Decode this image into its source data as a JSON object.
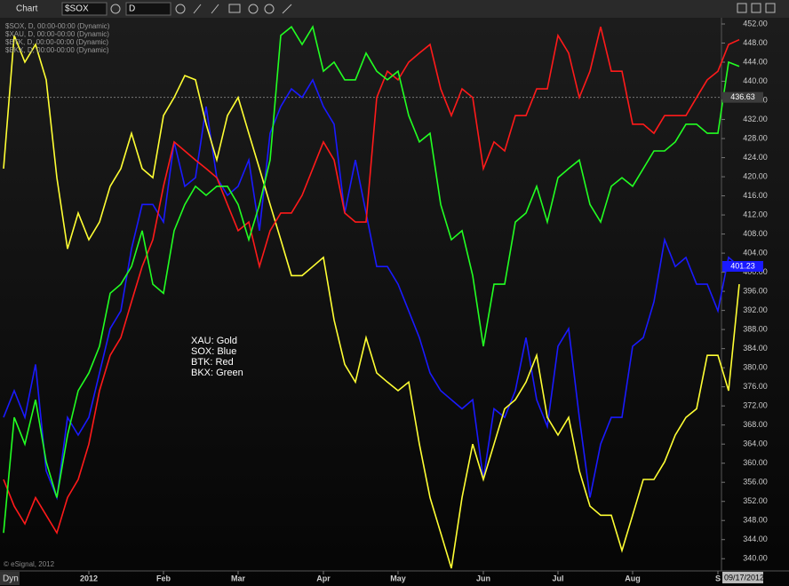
{
  "toolbar": {
    "title": "Chart",
    "symbol": "$SOX",
    "interval": "D"
  },
  "footer": {
    "copyright": "© eSignal, 2012",
    "mode": "Dyn",
    "date": "09/17/2012"
  },
  "chart_data": {
    "type": "line",
    "categories": [
      null,
      null,
      null,
      null,
      null,
      null,
      null,
      null,
      "2012",
      null,
      null,
      null,
      null,
      null,
      null,
      "Feb",
      null,
      null,
      null,
      null,
      null,
      null,
      "Mar",
      null,
      null,
      null,
      null,
      null,
      null,
      null,
      "Apr",
      null,
      null,
      null,
      null,
      null,
      null,
      "May",
      null,
      null,
      null,
      null,
      null,
      null,
      null,
      "Jun",
      null,
      null,
      null,
      null,
      null,
      null,
      "Jul",
      null,
      null,
      null,
      null,
      null,
      null,
      "Aug",
      null,
      null,
      null,
      null,
      null,
      null,
      null,
      "S",
      null,
      null
    ],
    "series": [
      {
        "name": "$SOX, D, 00:00-00:00 (Dynamic)",
        "color": "#1a1aff",
        "values": [
          369.6,
          375.2,
          369.6,
          380.7,
          358.4,
          352.8,
          369.6,
          365.9,
          369.6,
          378.9,
          388.2,
          391.9,
          404.9,
          414.2,
          414.2,
          410.5,
          427.3,
          418,
          419.8,
          434.7,
          419.8,
          416.1,
          418,
          423.5,
          408.7,
          429.1,
          434.7,
          438.4,
          436.6,
          440.3,
          434.7,
          431,
          412.4,
          423.5,
          412.4,
          401.2,
          401.2,
          397.5,
          391.9,
          386.3,
          378.9,
          375.2,
          373.3,
          371.4,
          373.3,
          356.6,
          371.4,
          369.6,
          375.2,
          386.3,
          373.3,
          367.7,
          384.5,
          388.2,
          369.6,
          352.8,
          364,
          369.6,
          369.6,
          384.5,
          386.3,
          393.8,
          406.8,
          401.2,
          403.1,
          397.5,
          397.5,
          391.9,
          403.1,
          401.2
        ]
      },
      {
        "name": "$XAU, D, 00:00-00:00 (Dynamic)",
        "color": "#ffff33",
        "values": [
          421.7,
          449.6,
          444,
          447.7,
          440.3,
          419.8,
          404.9,
          412.4,
          406.8,
          410.5,
          418,
          421.7,
          429.1,
          421.7,
          419.8,
          432.8,
          436.6,
          441.2,
          440.3,
          431,
          423.5,
          432.8,
          436.6,
          429.1,
          421.7,
          414.2,
          406.8,
          399.3,
          399.3,
          401.2,
          403.1,
          390,
          380.7,
          377,
          386.3,
          378.9,
          377,
          375.2,
          377,
          364,
          352.8,
          345.4,
          338,
          352.8,
          364,
          356.6,
          364,
          371.4,
          373.3,
          377,
          382.6,
          369.6,
          365.9,
          369.6,
          358.4,
          351,
          349.1,
          349.1,
          341.7,
          349.1,
          356.6,
          356.6,
          360.3,
          365.9,
          369.6,
          371.4,
          382.6,
          382.6,
          375.2,
          397.5
        ]
      },
      {
        "name": "$BTK, D, 00:00-00:00 (Dynamic)",
        "color": "#ff1a1a",
        "values": [
          356.6,
          351,
          347.3,
          352.8,
          349.1,
          345.4,
          352.8,
          356.6,
          364,
          375.2,
          382.6,
          386.3,
          393.8,
          401.2,
          406.8,
          418,
          427.3,
          425.4,
          423.5,
          421.7,
          419.8,
          414.2,
          408.7,
          410.5,
          401.2,
          408.7,
          412.4,
          412.4,
          416.1,
          421.7,
          427.3,
          423.5,
          412.4,
          410.5,
          410.5,
          436.6,
          442.1,
          440.3,
          444,
          445.9,
          447.7,
          438.4,
          432.8,
          438.4,
          436.6,
          421.7,
          427.3,
          425.4,
          432.8,
          432.8,
          438.4,
          438.4,
          449.6,
          445.9,
          436.6,
          442.1,
          451.4,
          442.1,
          442.1,
          431,
          431,
          429.1,
          432.8,
          432.8,
          432.8,
          436.6,
          440.3,
          442.1,
          447.7,
          448.7
        ]
      },
      {
        "name": "$BKX, D, 00:00-00:00 (Dynamic)",
        "color": "#22ff22",
        "values": [
          345.4,
          369.6,
          364,
          373.3,
          360.3,
          352.8,
          365.9,
          375.2,
          378.9,
          384.5,
          395.6,
          397.5,
          401.2,
          408.7,
          397.5,
          395.6,
          408.7,
          414.2,
          418,
          416.1,
          418,
          418,
          414.2,
          406.8,
          414.2,
          423.5,
          449.6,
          451.4,
          447.7,
          451.4,
          442.1,
          444,
          440.3,
          440.3,
          445.9,
          442.1,
          440.3,
          442.1,
          432.8,
          427.3,
          429.1,
          414.2,
          406.8,
          408.7,
          399.3,
          384.5,
          397.5,
          397.5,
          410.5,
          412.4,
          418,
          410.5,
          419.8,
          421.7,
          423.5,
          414.2,
          410.5,
          418,
          419.8,
          418,
          421.7,
          425.4,
          425.4,
          427.3,
          431,
          431,
          429.1,
          429.1,
          444,
          443.1
        ]
      }
    ],
    "notes": [
      "XAU:  Gold",
      "SOX:  Blue",
      "BTK:  Red",
      "BKX:  Green"
    ],
    "price_labels": [
      436.63,
      401.23
    ],
    "price_label_colors": [
      "#3c3c3c",
      "#1a1aff"
    ],
    "ylim": [
      338,
      453.3
    ],
    "yticks": [
      {
        "value": 340,
        "label": "340.00"
      },
      {
        "value": 344,
        "label": "344.00"
      },
      {
        "value": 348,
        "label": "348.00"
      },
      {
        "value": 352,
        "label": "352.00"
      },
      {
        "value": 356,
        "label": "356.00"
      },
      {
        "value": 360,
        "label": "360.00"
      },
      {
        "value": 364,
        "label": "364.00"
      },
      {
        "value": 368,
        "label": "368.00"
      },
      {
        "value": 372,
        "label": "372.00"
      },
      {
        "value": 376,
        "label": "376.00"
      },
      {
        "value": 380,
        "label": "380.00"
      },
      {
        "value": 384,
        "label": "384.00"
      },
      {
        "value": 388,
        "label": "388.00"
      },
      {
        "value": 392,
        "label": "392.00"
      },
      {
        "value": 396,
        "label": "396.00"
      },
      {
        "value": 400,
        "label": "400.00"
      },
      {
        "value": 404,
        "label": "404.00"
      },
      {
        "value": 408,
        "label": "408.00"
      },
      {
        "value": 412,
        "label": "412.00"
      },
      {
        "value": 416,
        "label": "416.00"
      },
      {
        "value": 420,
        "label": "420.00"
      },
      {
        "value": 424,
        "label": "424.00"
      },
      {
        "value": 428,
        "label": "428.00"
      },
      {
        "value": 432,
        "label": "432.00"
      },
      {
        "value": 436,
        "label": "436.00"
      },
      {
        "value": 440,
        "label": "440.00"
      },
      {
        "value": 444,
        "label": "444.00"
      },
      {
        "value": 448,
        "label": "448.00"
      },
      {
        "value": 452,
        "label": "452.00"
      }
    ],
    "grid": false
  }
}
